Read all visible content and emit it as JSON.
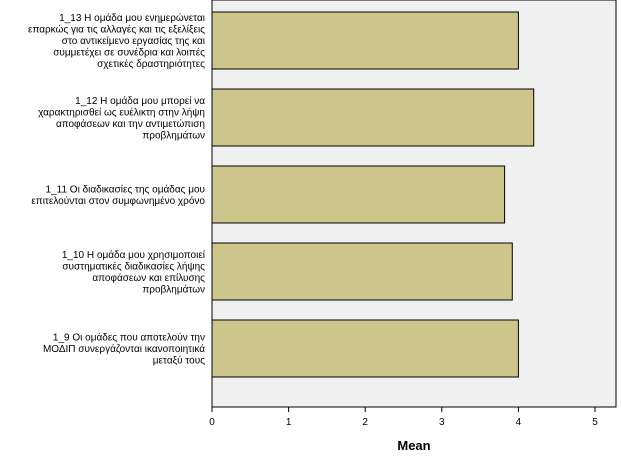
{
  "chart_data": {
    "type": "bar",
    "orientation": "horizontal",
    "categories": [
      [
        "1_13 Η ομάδα μου ενημερώνεται",
        "επαρκώς για τις αλλαγές και τις εξελίξεις",
        "στο  αντικείμενο εργασίας της και",
        "συμμετέχει σε συνέδρια και λοιπές",
        "σχετικές δραστηριότητες"
      ],
      [
        "1_12 Η ομάδα μου μπορεί να",
        "χαρακτηρισθεί ως ευέλικτη στην λήψη",
        "αποφάσεων και την αντιμετώπιση",
        "προβλημάτων"
      ],
      [
        "1_11  Οι διαδικασίες της ομάδας μου",
        "επιτελούνται στον συμφωνημένο χρόνο"
      ],
      [
        "1_10  Η ομάδα μου χρησιμοποιεί",
        "συστηματικές διαδικασίες λήψης",
        "αποφάσεων και επίλυσης",
        "προβλημάτων"
      ],
      [
        "1_9 Οι ομάδες που αποτελούν την",
        "ΜΟΔΙΠ συνεργάζονται ικανοποιητικά",
        "μεταξύ τους"
      ]
    ],
    "values": [
      4.0,
      4.2,
      3.82,
      3.92,
      4.0
    ],
    "xlim": [
      0,
      5.25
    ],
    "xticks": [
      "0",
      "1",
      "2",
      "3",
      "4",
      "5"
    ],
    "xlabel": "Mean",
    "ylabel": "",
    "colors": {
      "bar": "#cdc68c",
      "plot_bg": "#f0f0f0",
      "edge": "#000000"
    }
  }
}
